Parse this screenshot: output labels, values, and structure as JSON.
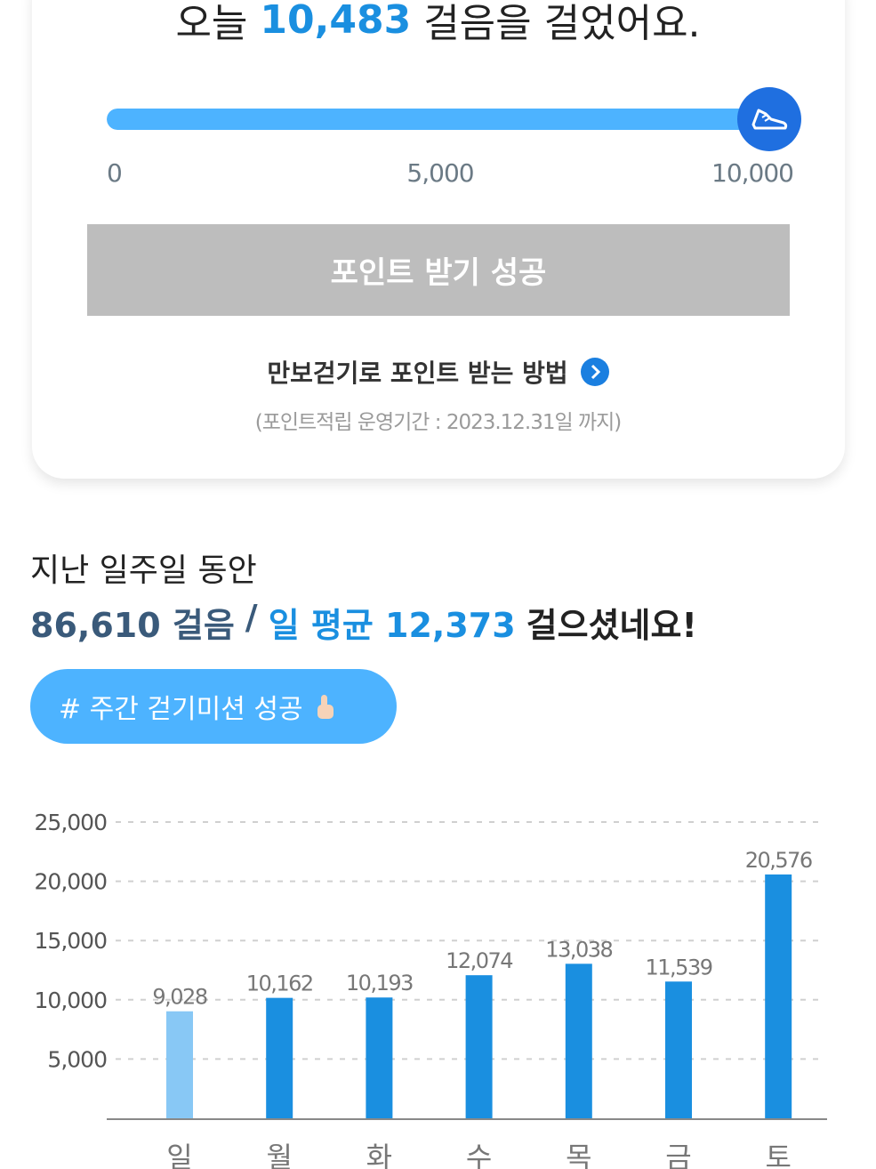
{
  "header": {
    "prefix": "오늘",
    "steps": "10,483",
    "suffix": "걸음을 걸었어요."
  },
  "progress": {
    "value": 10483,
    "lim": [
      0,
      10000
    ],
    "ticks": [
      0,
      {
        "value": 5000,
        "label": "5,000"
      },
      {
        "value": 10000,
        "label": "10,000"
      }
    ]
  },
  "button": "포인트 받기 성공",
  "guide_link": "만보걷기로 포인트 받는 방법",
  "notice": "(포인트적립 운영기간 : 2023.12.31일 까지)",
  "summary": {
    "line1": "지난 일주일 동안",
    "total": "86,610 걸음",
    "separator": "/",
    "average": "일 평균 12,373",
    "ending": "걸으셨네요!"
  },
  "badge": "# 주간 걷기미션 성공",
  "chart_data": {
    "type": "bar",
    "categories": [
      "일",
      "월",
      "화",
      "수",
      "목",
      "금",
      "토"
    ],
    "values": [
      9028,
      10162,
      10193,
      12074,
      13038,
      11539,
      20576
    ],
    "value_labels": [
      "9,028",
      "10,162",
      "10,193",
      "12,074",
      "13,038",
      "11,539",
      "20,576"
    ],
    "colors": [
      "#88c8f5",
      "#1a8fe0",
      "#1a8fe0",
      "#1a8fe0",
      "#1a8fe0",
      "#1a8fe0",
      "#1a8fe0"
    ],
    "ylim": [
      0,
      25000
    ],
    "yticks": [
      {
        "value": 5000,
        "label": "5,000"
      },
      {
        "value": 10000,
        "label": "10,000"
      },
      {
        "value": 15000,
        "label": "15,000"
      },
      {
        "value": 20000,
        "label": "20,000"
      },
      {
        "value": 25000,
        "label": "25,000"
      }
    ],
    "grid": true
  }
}
